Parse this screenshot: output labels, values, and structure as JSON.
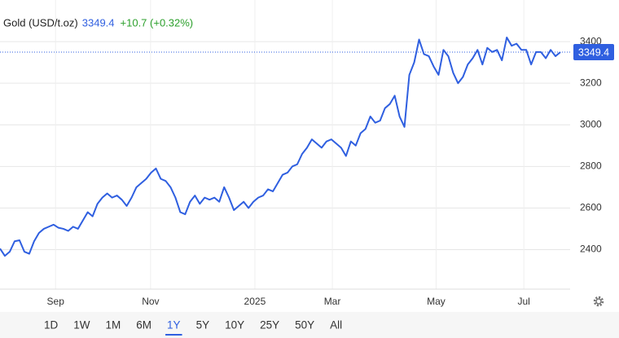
{
  "chart_data": {
    "type": "line",
    "title": "Gold (USD/t.oz)",
    "price": "3349.4",
    "change": "+10.7 (+0.32%)",
    "series": [
      {
        "name": "Gold",
        "color": "#2f5fe0",
        "values": [
          2405,
          2370,
          2390,
          2440,
          2445,
          2390,
          2380,
          2440,
          2480,
          2500,
          2510,
          2520,
          2505,
          2500,
          2490,
          2510,
          2500,
          2540,
          2580,
          2560,
          2620,
          2650,
          2670,
          2650,
          2660,
          2640,
          2610,
          2650,
          2700,
          2720,
          2740,
          2770,
          2790,
          2740,
          2730,
          2700,
          2650,
          2580,
          2570,
          2630,
          2660,
          2620,
          2650,
          2640,
          2650,
          2630,
          2700,
          2650,
          2590,
          2610,
          2630,
          2600,
          2630,
          2650,
          2660,
          2690,
          2680,
          2720,
          2760,
          2770,
          2800,
          2810,
          2860,
          2890,
          2930,
          2910,
          2890,
          2920,
          2930,
          2910,
          2890,
          2850,
          2920,
          2900,
          2960,
          2980,
          3040,
          3010,
          3020,
          3080,
          3100,
          3140,
          3040,
          2990,
          3240,
          3300,
          3410,
          3340,
          3330,
          3280,
          3240,
          3360,
          3330,
          3250,
          3200,
          3230,
          3290,
          3320,
          3360,
          3290,
          3370,
          3350,
          3360,
          3310,
          3420,
          3380,
          3390,
          3360,
          3360,
          3290,
          3350,
          3350,
          3320,
          3360,
          3330,
          3349.4
        ]
      }
    ],
    "last_label": "3349.4",
    "xlim": [
      0,
      117
    ],
    "xticks": [
      {
        "value": 11.4,
        "label": "Sep"
      },
      {
        "value": 30.9,
        "label": "Nov"
      },
      {
        "value": 52.3,
        "label": "2025"
      },
      {
        "value": 68.2,
        "label": "Mar"
      },
      {
        "value": 89.5,
        "label": "May"
      },
      {
        "value": 107.5,
        "label": "Jul"
      }
    ],
    "ylim": [
      2210,
      3600
    ],
    "yticks": [
      2400,
      2600,
      2800,
      3000,
      3200,
      3400
    ],
    "grid": true,
    "ranges": [
      "1D",
      "1W",
      "1M",
      "6M",
      "1Y",
      "5Y",
      "10Y",
      "25Y",
      "50Y",
      "All"
    ],
    "selected_range": 4
  }
}
